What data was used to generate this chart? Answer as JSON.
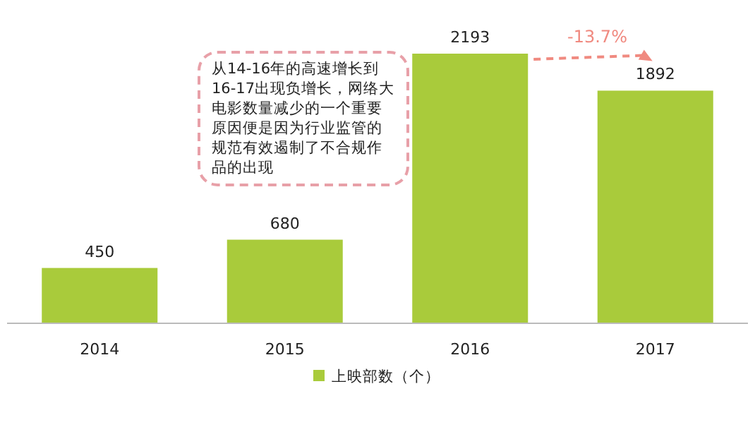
{
  "chart_data": {
    "type": "bar",
    "categories": [
      "2014",
      "2015",
      "2016",
      "2017"
    ],
    "series": [
      {
        "name": "上映部数（个）",
        "color": "#a9cb3b",
        "values": [
          450,
          680,
          2193,
          1892
        ]
      }
    ],
    "data_labels": true,
    "legend": "bottom",
    "annotations": [
      "从14-16年的高速增长到16-17出现负增长，网络大电影数量减少的一个重要原因便是因为行业监管的规范有效遏制了不合规作品的出现",
      "-13.7%"
    ]
  }
}
